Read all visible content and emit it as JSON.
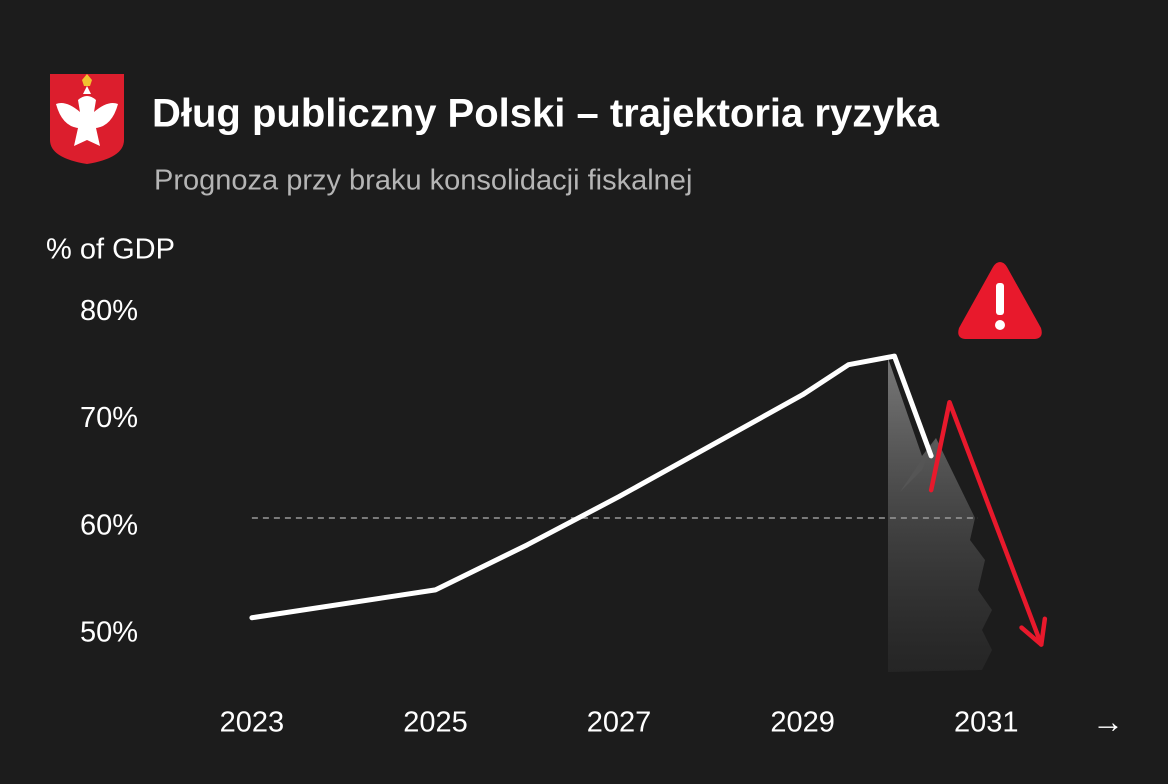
{
  "chart_data": {
    "type": "line",
    "title": "Dług publiczny Polski – trajektoria ryzyka",
    "subtitle": "Prognoza przy braku konsolidacji fiskalnej",
    "ylabel": "% of GDP",
    "xlabel": "→",
    "x": [
      2023,
      2025,
      2026,
      2027,
      2029,
      2029.5,
      2030,
      2030.4,
      2030.6,
      2031.6
    ],
    "series": [
      {
        "color": "#ffffff",
        "values": [
          51.5,
          54.1,
          58.3,
          62.8,
          72.3,
          75.1,
          75.9,
          66.6,
          null,
          null
        ]
      },
      {
        "color": "#e8192c",
        "values": [
          null,
          null,
          null,
          null,
          null,
          null,
          null,
          63.4,
          71.6,
          49.0
        ]
      }
    ],
    "reference_line": 60.8,
    "xlim": [
      2022.5,
      2032
    ],
    "xticks": [
      2023,
      2025,
      2027,
      2029,
      2031
    ],
    "ylim": [
      47,
      83
    ],
    "yticks": [
      {
        "value": 50,
        "label": "50%"
      },
      {
        "value": 60,
        "label": "60%"
      },
      {
        "value": 70,
        "label": "70%"
      },
      {
        "value": 80,
        "label": "80%"
      }
    ]
  }
}
